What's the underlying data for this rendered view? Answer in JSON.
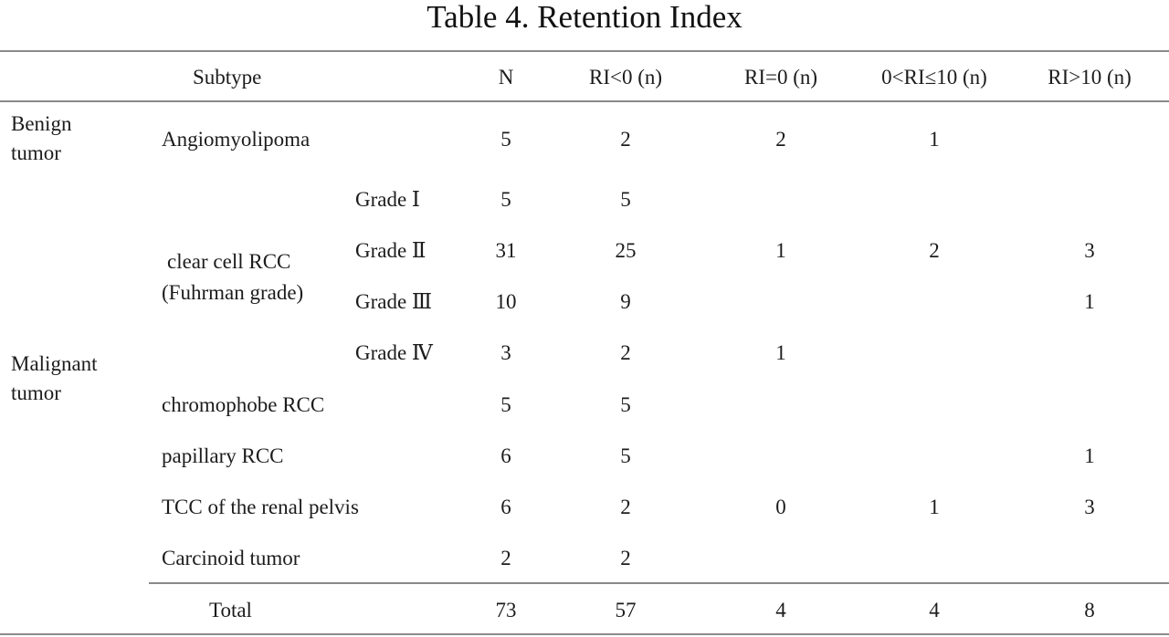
{
  "table": {
    "title": "Table 4. Retention Index",
    "headers": {
      "subtype": "Subtype",
      "n": "N",
      "ri_lt0": "RI<0 (n)",
      "ri_eq0": "RI=0 (n)",
      "ri_0_10": "0<RI≤10 (n)",
      "ri_gt10": "RI>10 (n)"
    },
    "groups": {
      "benign": [
        "Benign",
        "tumor"
      ],
      "malignant": [
        "Malignant",
        "tumor"
      ]
    },
    "clear_cell_label": [
      "clear cell RCC",
      "(Fuhrman grade)"
    ],
    "rows": [
      {
        "subtype": "Angiomyolipoma",
        "grade": "",
        "n": "5",
        "ri_lt0": "2",
        "ri_eq0": "2",
        "ri_0_10": "1",
        "ri_gt10": ""
      },
      {
        "subtype": "",
        "grade": "Grade Ⅰ",
        "n": "5",
        "ri_lt0": "5",
        "ri_eq0": "",
        "ri_0_10": "",
        "ri_gt10": ""
      },
      {
        "subtype": "",
        "grade": "Grade Ⅱ",
        "n": "31",
        "ri_lt0": "25",
        "ri_eq0": "1",
        "ri_0_10": "2",
        "ri_gt10": "3"
      },
      {
        "subtype": "",
        "grade": "Grade Ⅲ",
        "n": "10",
        "ri_lt0": "9",
        "ri_eq0": "",
        "ri_0_10": "",
        "ri_gt10": "1"
      },
      {
        "subtype": "",
        "grade": "Grade Ⅳ",
        "n": "3",
        "ri_lt0": "2",
        "ri_eq0": "1",
        "ri_0_10": "",
        "ri_gt10": ""
      },
      {
        "subtype": "chromophobe RCC",
        "grade": "",
        "n": "5",
        "ri_lt0": "5",
        "ri_eq0": "",
        "ri_0_10": "",
        "ri_gt10": ""
      },
      {
        "subtype": "papillary RCC",
        "grade": "",
        "n": "6",
        "ri_lt0": "5",
        "ri_eq0": "",
        "ri_0_10": "",
        "ri_gt10": "1"
      },
      {
        "subtype": "TCC of the renal pelvis",
        "grade": "",
        "n": "6",
        "ri_lt0": "2",
        "ri_eq0": "0",
        "ri_0_10": "1",
        "ri_gt10": "3"
      },
      {
        "subtype": "Carcinoid tumor",
        "grade": "",
        "n": "2",
        "ri_lt0": "2",
        "ri_eq0": "",
        "ri_0_10": "",
        "ri_gt10": ""
      }
    ],
    "total": {
      "label": "Total",
      "n": "73",
      "ri_lt0": "57",
      "ri_eq0": "4",
      "ri_0_10": "4",
      "ri_gt10": "8"
    }
  }
}
